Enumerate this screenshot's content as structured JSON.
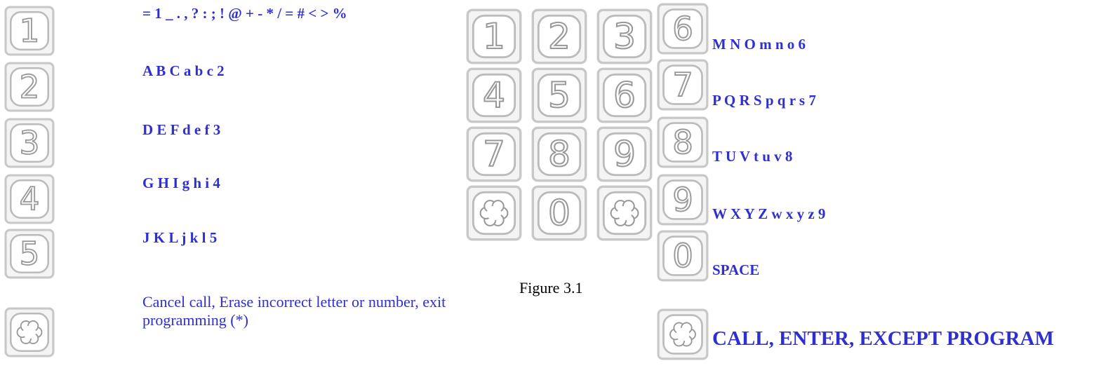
{
  "left_keys": [
    {
      "key": "1",
      "text": "= 1 _ . , ? : ; !   @ + -  * / = # < > %"
    },
    {
      "key": "2",
      "text": "A B C a b c 2"
    },
    {
      "key": "3",
      "text": "D E F d e f 3"
    },
    {
      "key": "4",
      "text": "G H I g h i 4"
    },
    {
      "key": "5",
      "text": "J K L j k l 5"
    },
    {
      "key": null,
      "text": "Cancel call, Erase incorrect letter or number, exit programming (*)"
    }
  ],
  "keypad": {
    "keys": [
      "1",
      "2",
      "3",
      "4",
      "5",
      "6",
      "7",
      "8",
      "9",
      null,
      "0",
      null
    ],
    "caption": "Figure 3.1"
  },
  "right_keys": [
    {
      "key": "6",
      "text": "M N O m n o 6"
    },
    {
      "key": "7",
      "text": "P Q R S p q r s 7"
    },
    {
      "key": "8",
      "text": "T U V t u v 8"
    },
    {
      "key": "9",
      "text": "W X Y Z w x y z 9"
    },
    {
      "key": "0",
      "text": "SPACE"
    },
    {
      "key": null,
      "text": "CALL, ENTER, EXCEPT PROGRAM"
    }
  ]
}
